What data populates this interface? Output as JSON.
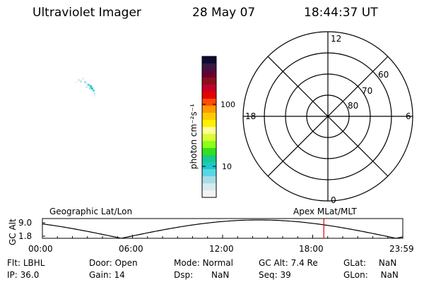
{
  "header": {
    "instrument": "Ultraviolet Imager",
    "date": "28 May 07",
    "time": "18:44:37 UT"
  },
  "colorbar": {
    "unit_label": "photon cm⁻²s⁻¹",
    "tick_labels": [
      "100",
      "10"
    ],
    "colors": [
      "#0b0b33",
      "#3a1740",
      "#660033",
      "#8c0d1f",
      "#c2002b",
      "#e60000",
      "#ff4d00",
      "#ff9900",
      "#ffcc00",
      "#fff000",
      "#ffff99",
      "#d9ff33",
      "#8cff1a",
      "#33e01a",
      "#1ac98c",
      "#1ac9c9",
      "#5ad6e6",
      "#a6dde6",
      "#d9eaee",
      "#f0f4f5"
    ]
  },
  "polar_plot": {
    "mlt_labels": {
      "top": "12",
      "bottom": "0",
      "left": "18",
      "right": "6"
    },
    "lat_labels": [
      "60",
      "70",
      "80"
    ]
  },
  "timeline": {
    "title_left": "Geographic Lat/Lon",
    "title_right": "Apex MLat/MLT",
    "ylabel": "GC Alt",
    "y_ticks": [
      "9.0",
      "1.8"
    ],
    "x_ticks": [
      "00:00",
      "06:00",
      "12:00",
      "18:00",
      "23:59"
    ],
    "current_time_hours": 18.74
  },
  "info": {
    "flt_label": "Flt:",
    "flt_value": "LBHL",
    "ip_label": "IP:",
    "ip_value": "36.0",
    "door_label": "Door:",
    "door_value": "Open",
    "gain_label": "Gain:",
    "gain_value": "14",
    "mode_label": "Mode:",
    "mode_value": "Normal",
    "dsp_label": "Dsp:",
    "dsp_value": "NaN",
    "gcalt_label": "GC Alt:",
    "gcalt_value": "7.4 Re",
    "seq_label": "Seq:",
    "seq_value": "39",
    "glat_label": "GLat:",
    "glat_value": "NaN",
    "glon_label": "GLon:",
    "glon_value": "NaN"
  }
}
